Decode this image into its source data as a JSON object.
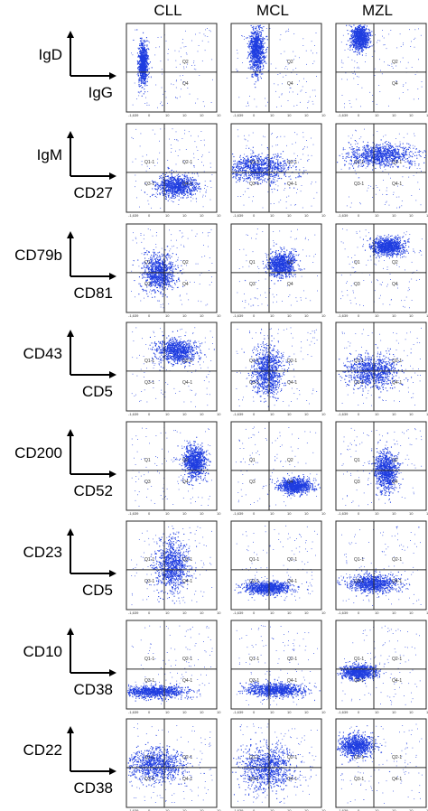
{
  "chart_data": {
    "type": "scatter",
    "columns": [
      "CLL",
      "MCL",
      "MZL"
    ],
    "axis_min_label": "-1,639",
    "axis_tick_labels": [
      "0",
      "10",
      "10",
      "10",
      "10"
    ],
    "rows": [
      {
        "y_marker": "IgD",
        "x_marker": "IgG",
        "quadrant_labels": [
          "",
          "Q2",
          "",
          "Q4"
        ]
      },
      {
        "y_marker": "IgM",
        "x_marker": "CD27",
        "quadrant_labels": [
          "Q1-1",
          "Q2-1",
          "Q3-1",
          "Q4-1"
        ]
      },
      {
        "y_marker": "CD79b",
        "x_marker": "CD81",
        "quadrant_labels": [
          "Q1",
          "Q2",
          "Q3",
          "Q4"
        ]
      },
      {
        "y_marker": "CD43",
        "x_marker": "CD5",
        "quadrant_labels": [
          "Q1-1",
          "Q2-1",
          "Q3-1",
          "Q4-1"
        ]
      },
      {
        "y_marker": "CD200",
        "x_marker": "CD52",
        "quadrant_labels": [
          "Q1",
          "Q2",
          "Q3",
          "Q4"
        ]
      },
      {
        "y_marker": "CD23",
        "x_marker": "CD5",
        "quadrant_labels": [
          "Q1-1",
          "Q2-1",
          "Q3-1",
          "Q4-1"
        ]
      },
      {
        "y_marker": "CD10",
        "x_marker": "CD38",
        "quadrant_labels": [
          "Q1-1",
          "Q2-1",
          "Q3-1",
          "Q4-1"
        ]
      },
      {
        "y_marker": "CD22",
        "x_marker": "CD38",
        "quadrant_labels": [
          "Q1-1",
          "Q2-1",
          "Q3-1",
          "Q4-1"
        ]
      }
    ],
    "populations": [
      [
        {
          "cx": 0.18,
          "cy": 0.45,
          "rx": 0.05,
          "ry": 0.22
        },
        {
          "cx": 0.28,
          "cy": 0.3,
          "rx": 0.08,
          "ry": 0.25
        },
        {
          "cx": 0.26,
          "cy": 0.15,
          "rx": 0.1,
          "ry": 0.14
        }
      ],
      [
        {
          "cx": 0.55,
          "cy": 0.7,
          "rx": 0.22,
          "ry": 0.12
        },
        {
          "cx": 0.3,
          "cy": 0.5,
          "rx": 0.35,
          "ry": 0.15
        },
        {
          "cx": 0.5,
          "cy": 0.35,
          "rx": 0.35,
          "ry": 0.12
        }
      ],
      [
        {
          "cx": 0.35,
          "cy": 0.55,
          "rx": 0.17,
          "ry": 0.2
        },
        {
          "cx": 0.55,
          "cy": 0.45,
          "rx": 0.15,
          "ry": 0.14
        },
        {
          "cx": 0.57,
          "cy": 0.25,
          "rx": 0.18,
          "ry": 0.1
        }
      ],
      [
        {
          "cx": 0.55,
          "cy": 0.32,
          "rx": 0.22,
          "ry": 0.14
        },
        {
          "cx": 0.4,
          "cy": 0.55,
          "rx": 0.16,
          "ry": 0.25
        },
        {
          "cx": 0.4,
          "cy": 0.55,
          "rx": 0.28,
          "ry": 0.18
        }
      ],
      [
        {
          "cx": 0.75,
          "cy": 0.45,
          "rx": 0.12,
          "ry": 0.18
        },
        {
          "cx": 0.7,
          "cy": 0.72,
          "rx": 0.18,
          "ry": 0.08
        },
        {
          "cx": 0.55,
          "cy": 0.55,
          "rx": 0.12,
          "ry": 0.22
        }
      ],
      [
        {
          "cx": 0.5,
          "cy": 0.5,
          "rx": 0.18,
          "ry": 0.28
        },
        {
          "cx": 0.4,
          "cy": 0.75,
          "rx": 0.25,
          "ry": 0.07
        },
        {
          "cx": 0.4,
          "cy": 0.7,
          "rx": 0.28,
          "ry": 0.1
        }
      ],
      [
        {
          "cx": 0.3,
          "cy": 0.8,
          "rx": 0.35,
          "ry": 0.07
        },
        {
          "cx": 0.48,
          "cy": 0.78,
          "rx": 0.32,
          "ry": 0.07
        },
        {
          "cx": 0.25,
          "cy": 0.58,
          "rx": 0.2,
          "ry": 0.08
        }
      ],
      [
        {
          "cx": 0.32,
          "cy": 0.52,
          "rx": 0.32,
          "ry": 0.18
        },
        {
          "cx": 0.4,
          "cy": 0.55,
          "rx": 0.28,
          "ry": 0.25
        },
        {
          "cx": 0.22,
          "cy": 0.3,
          "rx": 0.2,
          "ry": 0.12
        }
      ]
    ],
    "point_color": "#1f3de0",
    "gate_color": "#2a2a2a"
  }
}
